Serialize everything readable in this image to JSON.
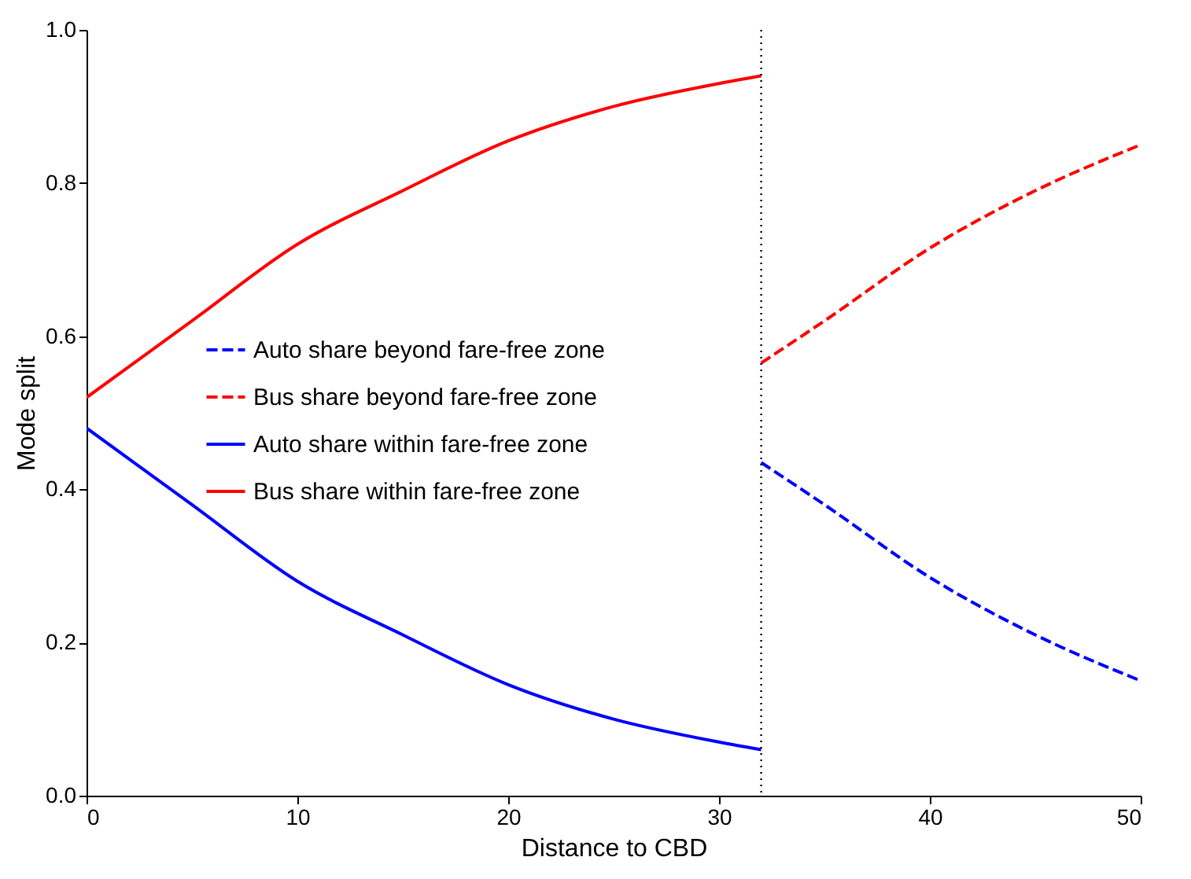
{
  "chart_data": {
    "type": "line",
    "xlabel": "Distance to CBD",
    "ylabel": "Mode split",
    "series": [
      {
        "name": "Auto share beyond fare-free zone",
        "color": "#0000ff",
        "line_style": "dashed",
        "x": [
          32,
          35,
          40,
          45,
          50
        ],
        "values": [
          0.435,
          0.38,
          0.285,
          0.21,
          0.15
        ]
      },
      {
        "name": "Bus share beyond fare-free zone",
        "color": "#ff0000",
        "line_style": "dashed",
        "x": [
          32,
          35,
          40,
          45,
          50
        ],
        "values": [
          0.565,
          0.62,
          0.715,
          0.79,
          0.85
        ]
      },
      {
        "name": "Auto share within fare-free zone",
        "color": "#0000ff",
        "line_style": "solid",
        "x": [
          0,
          5,
          10,
          15,
          20,
          25,
          30,
          32
        ],
        "values": [
          0.48,
          0.38,
          0.28,
          0.21,
          0.145,
          0.1,
          0.07,
          0.06
        ]
      },
      {
        "name": "Bus share within fare-free zone",
        "color": "#ff0000",
        "line_style": "solid",
        "x": [
          0,
          5,
          10,
          15,
          20,
          25,
          30,
          32
        ],
        "values": [
          0.52,
          0.62,
          0.72,
          0.79,
          0.855,
          0.9,
          0.93,
          0.94
        ]
      }
    ],
    "xlim": [
      0,
      50
    ],
    "xticks": [
      0,
      10,
      20,
      30,
      40,
      50
    ],
    "ylim": [
      0,
      1
    ],
    "yticks": [
      {
        "value": 0,
        "label": "0.0"
      },
      {
        "value": 0.2,
        "label": "0.2"
      },
      {
        "value": 0.4,
        "label": "0.4"
      },
      {
        "value": 0.6,
        "label": "0.6"
      },
      {
        "value": 0.8,
        "label": "0.8"
      },
      {
        "value": 1,
        "label": "1.0"
      }
    ],
    "ref_lines": [
      {
        "axis": "x",
        "value": 32,
        "color": "#000000",
        "line_style": "dotted"
      }
    ],
    "legend": "left",
    "grid": false
  }
}
